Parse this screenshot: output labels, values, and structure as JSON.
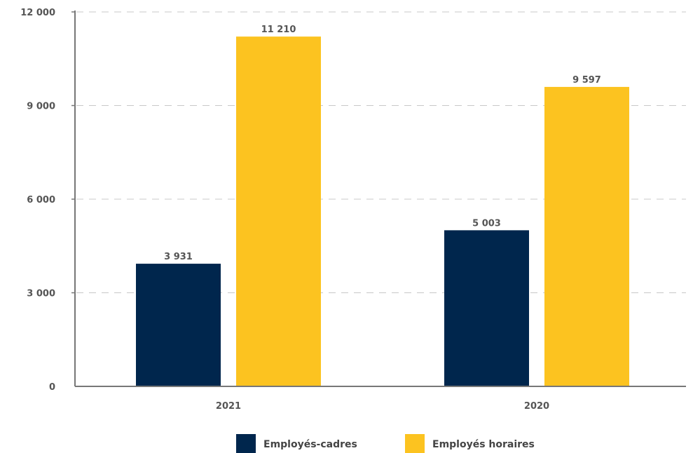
{
  "chart_data": {
    "type": "bar",
    "categories": [
      "2021",
      "2020"
    ],
    "series": [
      {
        "name": "Employés-cadres",
        "values": [
          3931,
          5003
        ],
        "color": "#00264d"
      },
      {
        "name": "Employés horaires",
        "values": [
          11210,
          9597
        ],
        "color": "#fcc320"
      }
    ],
    "value_labels": [
      [
        "3 931",
        "5 003"
      ],
      [
        "11 210",
        "9 597"
      ]
    ],
    "yticks": [
      {
        "value": 0,
        "label": "0"
      },
      {
        "value": 3000,
        "label": "3 000"
      },
      {
        "value": 6000,
        "label": "6 000"
      },
      {
        "value": 9000,
        "label": "9 000"
      },
      {
        "value": 12000,
        "label": "12 000"
      }
    ],
    "ylim": [
      0,
      12000
    ],
    "grid": true,
    "legend_position": "bottom"
  }
}
